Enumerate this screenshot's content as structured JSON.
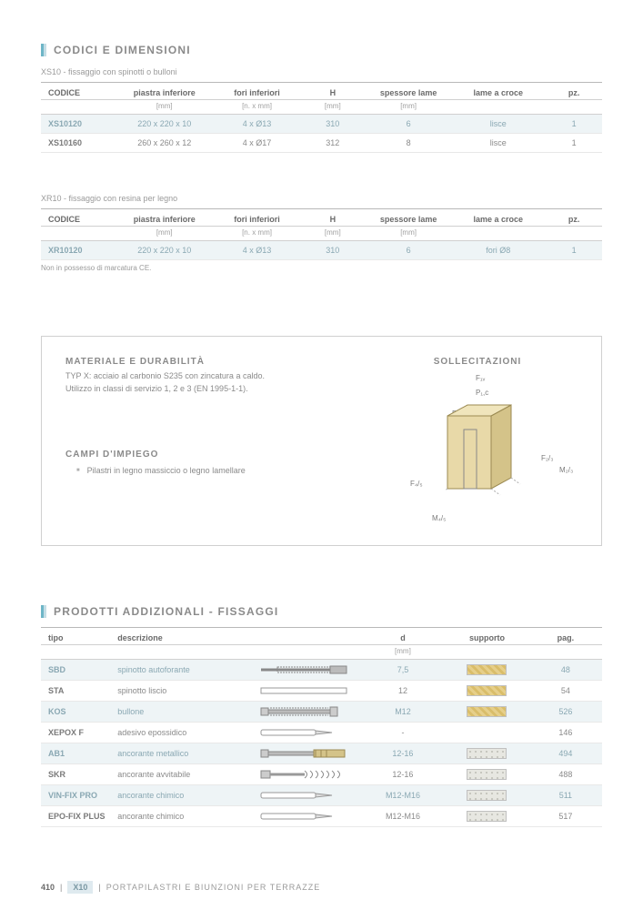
{
  "colors": {
    "accent": "#6eb6c7",
    "accent_light": "#c4dde5",
    "highlight_bg": "#eef4f6",
    "text_gray": "#8a8a8a"
  },
  "section1": {
    "title": "CODICI E DIMENSIONI",
    "table1_subtitle": "XS10 - fissaggio con spinotti o bulloni",
    "headers": {
      "c0": "CODICE",
      "c1": "piastra inferiore",
      "c2": "fori inferiori",
      "c3": "H",
      "c4": "spessore lame",
      "c5": "lame a croce",
      "c6": "pz."
    },
    "units": {
      "c1": "[mm]",
      "c2": "[n. x mm]",
      "c3": "[mm]",
      "c4": "[mm]"
    },
    "t1rows": [
      {
        "hl": true,
        "c0": "XS10120",
        "c1": "220 x 220 x 10",
        "c2": "4 x Ø13",
        "c3": "310",
        "c4": "6",
        "c5": "lisce",
        "c6": "1"
      },
      {
        "hl": false,
        "c0": "XS10160",
        "c1": "260 x 260 x 12",
        "c2": "4 x Ø17",
        "c3": "312",
        "c4": "8",
        "c5": "lisce",
        "c6": "1"
      }
    ],
    "table2_subtitle": "XR10 - fissaggio con resina per legno",
    "t2rows": [
      {
        "hl": true,
        "c0": "XR10120",
        "c1": "220 x 220 x 10",
        "c2": "4 x Ø13",
        "c3": "310",
        "c4": "6",
        "c5": "fori Ø8",
        "c6": "1"
      }
    ],
    "note": "Non in possesso di marcatura CE."
  },
  "infobox": {
    "mat_title": "MATERIALE E DURABILITÀ",
    "mat_text1": "TYP X: acciaio al carbonio S235 con zincatura a caldo.",
    "mat_text2": "Utilizzo in classi di servizio 1, 2 e 3 (EN 1995-1-1).",
    "campi_title": "CAMPI D'IMPIEGO",
    "campi_item": "Pilastri in legno massiccio o legno lamellare",
    "soll_title": "SOLLECITAZIONI",
    "labels": {
      "f1": "F₁ᵥ",
      "p1": "P₁,c",
      "bs": "Bₛ,min",
      "f23": "F₂/₃",
      "m23": "M₂/₃",
      "f45": "F₄/₅",
      "m45": "M₄/₅"
    }
  },
  "section2": {
    "title": "PRODOTTI ADDIZIONALI - FISSAGGI",
    "headers": {
      "c0": "tipo",
      "c1": "descrizione",
      "c2": "",
      "c3": "d",
      "c4": "supporto",
      "c5": "pag."
    },
    "units": {
      "c3": "[mm]"
    },
    "rows": [
      {
        "hl": true,
        "c0": "SBD",
        "c1": "spinotto autoforante",
        "kind": "screw",
        "c3": "7,5",
        "sw": "wood",
        "c5": "48"
      },
      {
        "hl": false,
        "c0": "STA",
        "c1": "spinotto liscio",
        "kind": "rod",
        "c3": "12",
        "sw": "wood",
        "c5": "54"
      },
      {
        "hl": true,
        "c0": "KOS",
        "c1": "bullone",
        "kind": "bolt",
        "c3": "M12",
        "sw": "wood",
        "c5": "526"
      },
      {
        "hl": false,
        "c0": "XEPOX F",
        "c1": "adesivo epossidico",
        "kind": "tube",
        "c3": "-",
        "sw": "",
        "c5": "146"
      },
      {
        "hl": true,
        "c0": "AB1",
        "c1": "ancorante metallico",
        "kind": "anchor",
        "c3": "12-16",
        "sw": "stone",
        "c5": "494"
      },
      {
        "hl": false,
        "c0": "SKR",
        "c1": "ancorante avvitabile",
        "kind": "screw2",
        "c3": "12-16",
        "sw": "stone",
        "c5": "488"
      },
      {
        "hl": true,
        "c0": "VIN-FIX PRO",
        "c1": "ancorante chimico",
        "kind": "tube",
        "c3": "M12-M16",
        "sw": "stone",
        "c5": "511"
      },
      {
        "hl": false,
        "c0": "EPO-FIX PLUS",
        "c1": "ancorante chimico",
        "kind": "tube",
        "c3": "M12-M16",
        "sw": "stone",
        "c5": "517"
      }
    ]
  },
  "footer": {
    "page": "410",
    "code": "X10",
    "category": "PORTAPILASTRI E BIUNZIONI PER TERRAZZE"
  }
}
